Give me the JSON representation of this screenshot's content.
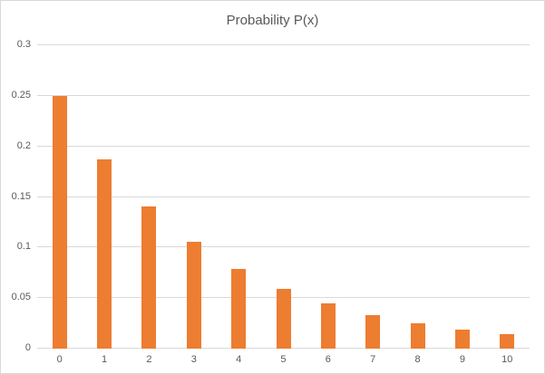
{
  "chart_data": {
    "type": "bar",
    "title": "Probability P(x)",
    "categories": [
      "0",
      "1",
      "2",
      "3",
      "4",
      "5",
      "6",
      "7",
      "8",
      "9",
      "10"
    ],
    "values": [
      0.25,
      0.1875,
      0.1406,
      0.1055,
      0.0791,
      0.0593,
      0.0445,
      0.0334,
      0.025,
      0.0188,
      0.0141
    ],
    "xlabel": "",
    "ylabel": "",
    "ylim": [
      0,
      0.3
    ],
    "y_ticks": [
      0,
      0.05,
      0.1,
      0.15,
      0.2,
      0.25,
      0.3
    ],
    "y_tick_labels": [
      "0",
      "0.05",
      "0.1",
      "0.15",
      "0.2",
      "0.25",
      "0.3"
    ],
    "grid": true,
    "legend": "none",
    "colors": {
      "bar": "#ED7D31",
      "gridline": "#D9D9D9",
      "axis_line": "#D9D9D9",
      "text": "#595959",
      "frame_border": "#D9D9D9",
      "background": "#FFFFFF"
    }
  }
}
